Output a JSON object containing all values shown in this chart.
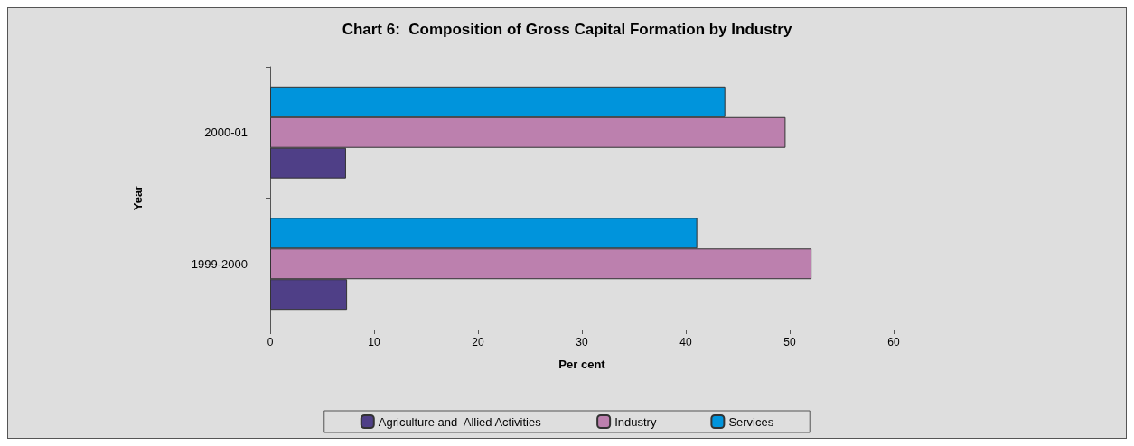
{
  "chart_data": {
    "type": "bar",
    "orientation": "horizontal",
    "title": "Chart 6:  Composition of Gross Capital Formation by Industry",
    "xlabel": "Per cent",
    "ylabel": "Year",
    "categories": [
      "2000-01",
      "1999-2000"
    ],
    "series": [
      {
        "name": "Agriculture and  Allied Activities",
        "color": "#4f3f87",
        "values": [
          7.3,
          7.4
        ]
      },
      {
        "name": "Industry",
        "color": "#bc80ae",
        "values": [
          49.6,
          52.1
        ]
      },
      {
        "name": "Services",
        "color": "#0094dc",
        "values": [
          43.8,
          41.1
        ]
      }
    ],
    "xlim": [
      0,
      60
    ],
    "xticks": [
      0,
      10,
      20,
      30,
      40,
      50,
      60
    ],
    "grid": false,
    "legend": "bottom"
  }
}
